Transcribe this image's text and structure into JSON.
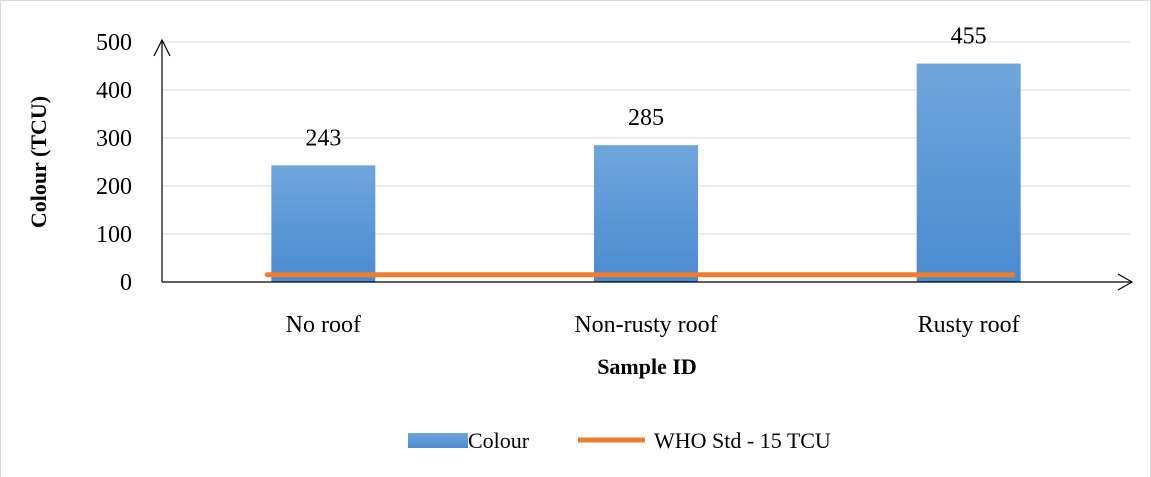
{
  "chart_data": {
    "type": "bar",
    "title": "",
    "xlabel": "Sample ID",
    "ylabel": "Colour (TCU)",
    "categories": [
      "No roof",
      "Non-rusty roof",
      "Rusty roof"
    ],
    "series": [
      {
        "name": "Colour",
        "kind": "bar",
        "values": [
          243,
          285,
          455
        ],
        "color": "#5b9bd5"
      },
      {
        "name": "WHO Std - 15 TCU",
        "kind": "line",
        "values": [
          15,
          15,
          15
        ],
        "color": "#ed7d31"
      }
    ],
    "data_labels": [
      "243",
      "285",
      "455"
    ],
    "yticks": [
      0,
      100,
      200,
      300,
      400,
      500
    ],
    "ylim": [
      0,
      500
    ],
    "grid": true,
    "legend": "bottom"
  }
}
